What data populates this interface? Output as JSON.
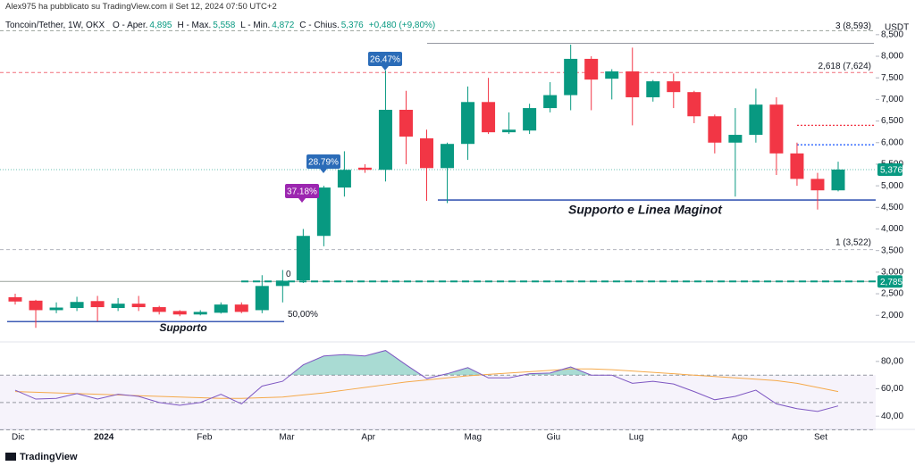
{
  "published": "Alex975 ha pubblicato su TradingView.com il Set 12, 2024 07:50 UTC+2",
  "footer": "TradingView",
  "chart_data": [
    {
      "type": "candlestick",
      "title": "Toncoin/Tether, 1W, OKX",
      "legend": [
        "O - Aper.",
        "4,895",
        "H - Max.",
        "5,558",
        "L - Min.",
        "4,872",
        "C - Chius.",
        "5,376",
        "+0,480 (+9,80%)"
      ],
      "currency": "USDT",
      "categories": [
        "Dic",
        null,
        null,
        null,
        "2024",
        null,
        null,
        null,
        null,
        "Feb",
        null,
        null,
        null,
        "Mar",
        null,
        null,
        null,
        "Apr",
        null,
        null,
        null,
        null,
        "Mag",
        null,
        null,
        null,
        "Giu",
        null,
        null,
        null,
        "Lug",
        null,
        null,
        null,
        null,
        "Ago",
        null,
        null,
        null,
        "Set",
        null
      ],
      "open": [
        2420,
        2340,
        2120,
        2170,
        2330,
        2170,
        2270,
        2190,
        2100,
        2020,
        2060,
        2250,
        2120,
        2680,
        2810,
        3840,
        4960,
        5420,
        5370,
        6760,
        6100,
        5410,
        5970,
        6940,
        6240,
        6280,
        6800,
        7100,
        7940,
        7480,
        7650,
        7050,
        7420,
        7170,
        6610,
        6000,
        6180,
        6880,
        5750,
        5160,
        4895
      ],
      "high": [
        2500,
        2360,
        2300,
        2430,
        2450,
        2400,
        2450,
        2220,
        2120,
        2120,
        2300,
        2300,
        2930,
        3050,
        4000,
        5000,
        5800,
        5500,
        7670,
        7200,
        6300,
        6000,
        7300,
        7500,
        6700,
        6900,
        7400,
        8270,
        8000,
        7700,
        8200,
        7450,
        7600,
        7200,
        6650,
        6800,
        7250,
        7050,
        6000,
        5300,
        5558
      ],
      "low": [
        2250,
        1710,
        2050,
        2100,
        1860,
        2100,
        2100,
        2020,
        1980,
        2000,
        2040,
        2050,
        2050,
        2300,
        2750,
        3600,
        4750,
        5300,
        5100,
        5500,
        4650,
        4600,
        5600,
        6200,
        6200,
        6200,
        6700,
        6750,
        6750,
        7000,
        6400,
        6950,
        6800,
        6450,
        5750,
        4750,
        6000,
        5250,
        5000,
        4450,
        4872
      ],
      "close": [
        2320,
        2120,
        2180,
        2310,
        2190,
        2270,
        2190,
        2080,
        2020,
        2080,
        2250,
        2080,
        2680,
        2800,
        3840,
        4960,
        5370,
        5370,
        6760,
        6140,
        5410,
        5970,
        6940,
        6240,
        6300,
        6800,
        7100,
        7940,
        7460,
        7650,
        7050,
        7420,
        7170,
        6610,
        6000,
        6180,
        6880,
        5750,
        5160,
        4895,
        5376
      ],
      "up_color": "#089981",
      "down_color": "#f23645",
      "ylim": [
        1550,
        8600
      ],
      "yticks": [
        {
          "value": 2000,
          "label": "2,000"
        },
        {
          "value": 2500,
          "label": "2,500"
        },
        {
          "value": 3000,
          "label": "3,000"
        },
        {
          "value": 3500,
          "label": "3,500"
        },
        {
          "value": 4000,
          "label": "4,000"
        },
        {
          "value": 4500,
          "label": "4,500"
        },
        {
          "value": 5000,
          "label": "5,000"
        },
        {
          "value": 5500,
          "label": "5,500"
        },
        {
          "value": 6000,
          "label": "6,000"
        },
        {
          "value": 6500,
          "label": "6,500"
        },
        {
          "value": 7000,
          "label": "7,000"
        },
        {
          "value": 7500,
          "label": "7,500"
        },
        {
          "value": 8000,
          "label": "8,000"
        },
        {
          "value": 8500,
          "label": "8,500"
        }
      ],
      "levels": [
        {
          "value": 8593,
          "label": "3 (8,593)",
          "color": "#9aa39c"
        },
        {
          "value": 7624,
          "label": "2,618 (7,624)",
          "color": "#f06f7a"
        },
        {
          "value": 3522,
          "label": "1 (3,522)",
          "color": "#b2b5be"
        },
        {
          "value": 2785,
          "label": "0",
          "color": "#9aa39c"
        },
        {
          "value": 1855,
          "label": "50,00%",
          "color": "#3d5bb5"
        }
      ],
      "price_labels": [
        {
          "value": 5376,
          "label": "5,376",
          "color": "#089981"
        },
        {
          "value": 2785,
          "label": "2,785",
          "color": "#089981"
        }
      ],
      "support_lines": [
        {
          "value": 8300,
          "color": "#9598a1"
        },
        {
          "value": 4670,
          "color": "#3d5bb5"
        },
        {
          "value": 6400,
          "color": "#f23645"
        },
        {
          "value": 5950,
          "color": "#2962ff"
        }
      ],
      "annotations": [
        {
          "text": "Supporto e Linea Maginot",
          "color": "#3d78d8"
        },
        {
          "text": "Supporto",
          "color": "#3d78d8"
        },
        {
          "text": "26.47%",
          "color": "#2b6cb8"
        },
        {
          "text": "28.79%",
          "color": "#2b6cb8"
        },
        {
          "text": "37.18%",
          "color": "#9c27b0"
        }
      ]
    },
    {
      "type": "line",
      "series": [
        {
          "color": "#7e57c2",
          "values": [
            59,
            52.5,
            53,
            56.5,
            52.5,
            56,
            54.5,
            50,
            48,
            50,
            56,
            49,
            62,
            65.5,
            77.5,
            84,
            85,
            84,
            88,
            77.5,
            67.5,
            71,
            75.5,
            68,
            68,
            71,
            71.5,
            76,
            70,
            70,
            64,
            65.5,
            63.5,
            58,
            52,
            54.5,
            59,
            49,
            45.5,
            43.5,
            47.5
          ]
        },
        {
          "color": "#f5a94a",
          "values": [
            58,
            57.5,
            57,
            56.5,
            56,
            55.5,
            55,
            54.5,
            54,
            53.5,
            53,
            53,
            53.5,
            54,
            55.5,
            57,
            59,
            61,
            63,
            65,
            66.5,
            68,
            69.5,
            70.5,
            71.5,
            72.5,
            73.5,
            74.5,
            74.5,
            74,
            73,
            72,
            71,
            70,
            69,
            68,
            67,
            66,
            64,
            61,
            58
          ]
        }
      ],
      "bands": [
        70,
        50,
        30
      ],
      "ylim": [
        31,
        91
      ],
      "yticks": [
        {
          "value": 40,
          "label": "40,00"
        },
        {
          "value": 60,
          "label": "60,00"
        },
        {
          "value": 80,
          "label": "80,00"
        }
      ]
    }
  ]
}
